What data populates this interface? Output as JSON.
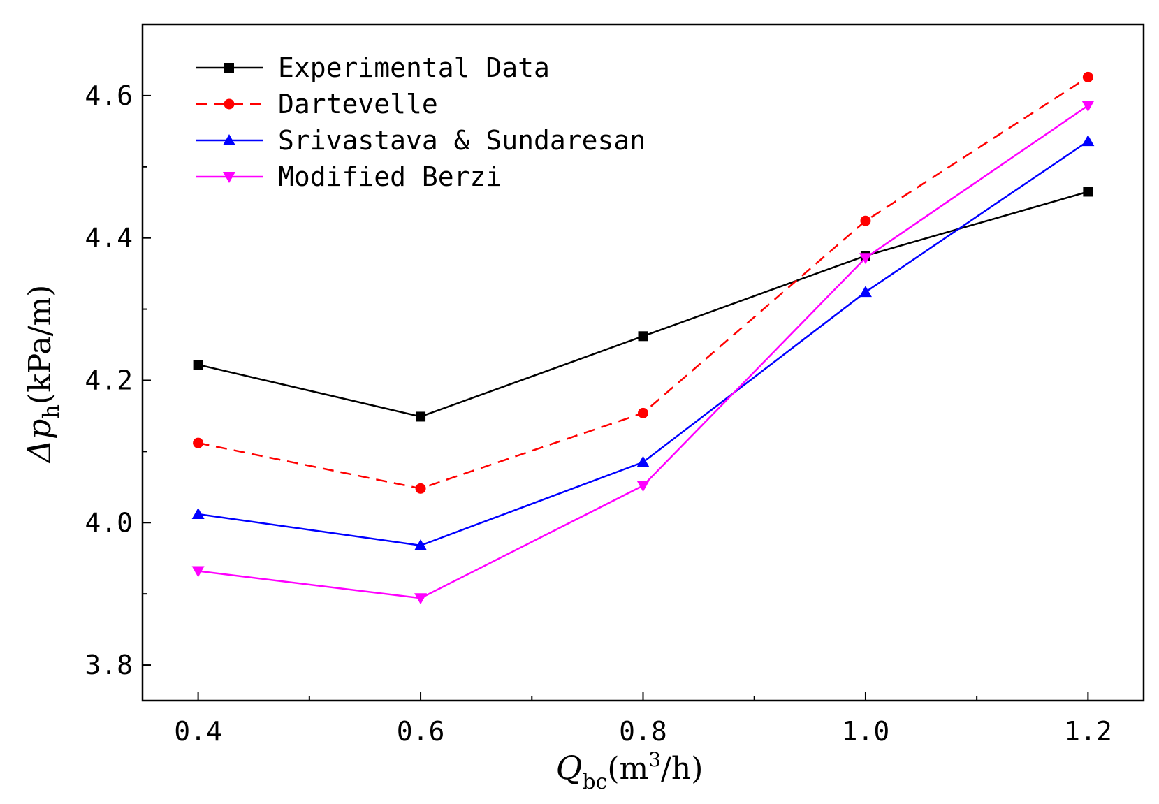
{
  "chart_data": {
    "type": "line",
    "x": [
      0.4,
      0.6,
      0.8,
      1.0,
      1.2
    ],
    "x_ticks": [
      "0.4",
      "0.6",
      "0.8",
      "1.0",
      "1.2"
    ],
    "y_ticks": [
      "3.8",
      "4.0",
      "4.2",
      "4.4",
      "4.6"
    ],
    "xlim": [
      0.35,
      1.25
    ],
    "ylim": [
      3.75,
      4.7
    ],
    "xlabel": {
      "symbol": "Q",
      "subscript": "bc",
      "unit_prefix": "(m",
      "unit_sup": "3",
      "unit_suffix": "/h)"
    },
    "ylabel": {
      "symbol": "Δp",
      "subscript": "h",
      "unit": "(kPa/m)"
    },
    "legend_position": "top-left",
    "grid": false,
    "series": [
      {
        "name": "Experimental Data",
        "values": [
          4.222,
          4.149,
          4.262,
          4.375,
          4.465
        ],
        "color": "#000000",
        "dash": "solid",
        "marker": "square"
      },
      {
        "name": "Dartevelle",
        "values": [
          4.112,
          4.048,
          4.154,
          4.424,
          4.626
        ],
        "color": "#ff0000",
        "dash": "dashed",
        "marker": "circle"
      },
      {
        "name": "Srivastava & Sundaresan",
        "values": [
          4.012,
          3.968,
          4.085,
          4.324,
          4.536
        ],
        "color": "#0000ff",
        "dash": "solid",
        "marker": "triangle-up"
      },
      {
        "name": "Modified Berzi",
        "values": [
          3.932,
          3.894,
          4.052,
          4.372,
          4.586
        ],
        "color": "#ff00ff",
        "dash": "solid",
        "marker": "triangle-down"
      }
    ]
  }
}
